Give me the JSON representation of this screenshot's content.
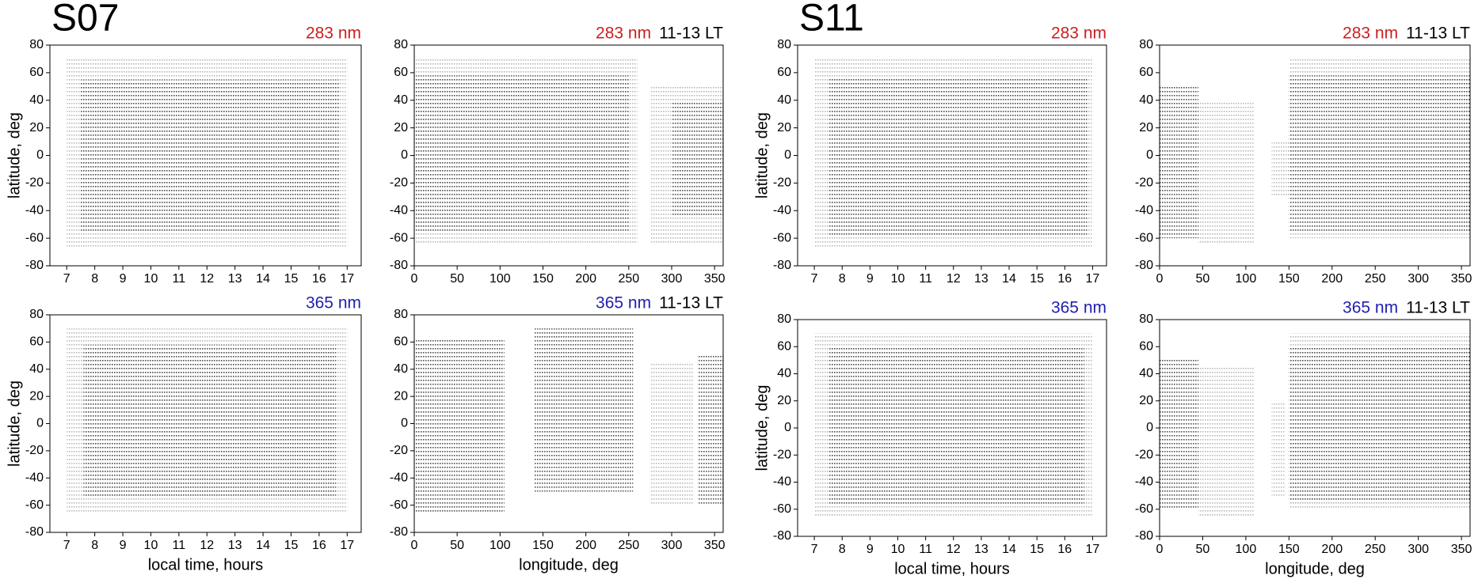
{
  "chart_data": [
    {
      "type": "coverage",
      "group_label": "S07",
      "wavelength": "283 nm",
      "wavelength_color": "#cc1f1f",
      "ylabel": "latitude, deg",
      "xlim": [
        6.4,
        17.5
      ],
      "xticks": [
        7,
        8,
        9,
        10,
        11,
        12,
        13,
        14,
        15,
        16,
        17
      ],
      "ylim": [
        -80,
        80
      ],
      "yticks": [
        -80,
        -60,
        -40,
        -20,
        0,
        20,
        40,
        60,
        80
      ],
      "regions": [
        {
          "x": [
            7,
            17
          ],
          "y": [
            -66,
            70
          ],
          "color": "#bbbbbb"
        },
        {
          "x": [
            7.5,
            16.7
          ],
          "y": [
            -55,
            55
          ],
          "color": "#555555"
        }
      ]
    },
    {
      "type": "coverage",
      "wavelength": "283 nm",
      "wavelength_color": "#cc1f1f",
      "title": "11-13 LT",
      "xlim": [
        0,
        360
      ],
      "xticks": [
        0,
        50,
        100,
        150,
        200,
        250,
        300,
        350
      ],
      "ylim": [
        -80,
        80
      ],
      "yticks": [
        -80,
        -60,
        -40,
        -20,
        0,
        20,
        40,
        60,
        80
      ],
      "regions": [
        {
          "x": [
            0,
            260
          ],
          "y": [
            -65,
            70
          ],
          "color": "#bbbbbb"
        },
        {
          "x": [
            0,
            250
          ],
          "y": [
            -55,
            58
          ],
          "color": "#555555"
        },
        {
          "x": [
            275,
            360
          ],
          "y": [
            -65,
            50
          ],
          "color": "#bbbbbb"
        },
        {
          "x": [
            300,
            360
          ],
          "y": [
            -45,
            40
          ],
          "color": "#555555"
        }
      ]
    },
    {
      "type": "coverage",
      "wavelength": "365 nm",
      "wavelength_color": "#1f1fb0",
      "ylabel": "latitude, deg",
      "xlabel": "local time, hours",
      "xlim": [
        6.4,
        17.5
      ],
      "xticks": [
        7,
        8,
        9,
        10,
        11,
        12,
        13,
        14,
        15,
        16,
        17
      ],
      "ylim": [
        -80,
        80
      ],
      "yticks": [
        -80,
        -60,
        -40,
        -20,
        0,
        20,
        40,
        60,
        80
      ],
      "regions": [
        {
          "x": [
            7,
            17
          ],
          "y": [
            -66,
            70
          ],
          "color": "#bbbbbb"
        },
        {
          "x": [
            7.6,
            16.6
          ],
          "y": [
            -55,
            58
          ],
          "color": "#555555"
        }
      ]
    },
    {
      "type": "coverage",
      "wavelength": "365 nm",
      "wavelength_color": "#1f1fb0",
      "title": "11-13 LT",
      "xlabel": "longitude, deg",
      "xlim": [
        0,
        360
      ],
      "xticks": [
        0,
        50,
        100,
        150,
        200,
        250,
        300,
        350
      ],
      "ylim": [
        -80,
        80
      ],
      "yticks": [
        -80,
        -60,
        -40,
        -20,
        0,
        20,
        40,
        60,
        80
      ],
      "regions": [
        {
          "x": [
            0,
            105
          ],
          "y": [
            -65,
            62
          ],
          "color": "#555555"
        },
        {
          "x": [
            140,
            255
          ],
          "y": [
            -50,
            70
          ],
          "color": "#555555"
        },
        {
          "x": [
            275,
            325
          ],
          "y": [
            -60,
            45
          ],
          "color": "#bbbbbb"
        },
        {
          "x": [
            330,
            360
          ],
          "y": [
            -60,
            50
          ],
          "color": "#555555"
        }
      ]
    },
    {
      "type": "coverage",
      "group_label": "S11",
      "wavelength": "283 nm",
      "wavelength_color": "#cc1f1f",
      "ylabel": "latitude, deg",
      "xlim": [
        6.4,
        17.5
      ],
      "xticks": [
        7,
        8,
        9,
        10,
        11,
        12,
        13,
        14,
        15,
        16,
        17
      ],
      "ylim": [
        -80,
        80
      ],
      "yticks": [
        -80,
        -60,
        -40,
        -20,
        0,
        20,
        40,
        60,
        80
      ],
      "regions": [
        {
          "x": [
            7,
            17
          ],
          "y": [
            -66,
            70
          ],
          "color": "#bbbbbb"
        },
        {
          "x": [
            7.5,
            16.8
          ],
          "y": [
            -58,
            57
          ],
          "color": "#555555"
        }
      ]
    },
    {
      "type": "coverage",
      "wavelength": "283 nm",
      "wavelength_color": "#cc1f1f",
      "title": "11-13 LT",
      "xlim": [
        0,
        360
      ],
      "xticks": [
        0,
        50,
        100,
        150,
        200,
        250,
        300,
        350
      ],
      "ylim": [
        -80,
        80
      ],
      "yticks": [
        -80,
        -60,
        -40,
        -20,
        0,
        20,
        40,
        60,
        80
      ],
      "regions": [
        {
          "x": [
            0,
            45
          ],
          "y": [
            -60,
            50
          ],
          "color": "#555555"
        },
        {
          "x": [
            45,
            110
          ],
          "y": [
            -65,
            40
          ],
          "color": "#bbbbbb"
        },
        {
          "x": [
            130,
            150
          ],
          "y": [
            -30,
            10
          ],
          "color": "#bbbbbb"
        },
        {
          "x": [
            150,
            360
          ],
          "y": [
            -60,
            70
          ],
          "color": "#bbbbbb"
        },
        {
          "x": [
            150,
            360
          ],
          "y": [
            -55,
            58
          ],
          "color": "#555555"
        }
      ]
    },
    {
      "type": "coverage",
      "wavelength": "365 nm",
      "wavelength_color": "#1f1fb0",
      "ylabel": "latitude, deg",
      "xlabel": "local time, hours",
      "xlim": [
        6.4,
        17.5
      ],
      "xticks": [
        7,
        8,
        9,
        10,
        11,
        12,
        13,
        14,
        15,
        16,
        17
      ],
      "ylim": [
        -80,
        80
      ],
      "yticks": [
        -80,
        -60,
        -40,
        -20,
        0,
        20,
        40,
        60,
        80
      ],
      "regions": [
        {
          "x": [
            7,
            17
          ],
          "y": [
            -66,
            70
          ],
          "color": "#bbbbbb"
        },
        {
          "x": [
            7.5,
            16.7
          ],
          "y": [
            -56,
            60
          ],
          "color": "#555555"
        }
      ]
    },
    {
      "type": "coverage",
      "wavelength": "365 nm",
      "wavelength_color": "#1f1fb0",
      "title": "11-13 LT",
      "xlabel": "longitude, deg",
      "xlim": [
        0,
        360
      ],
      "xticks": [
        0,
        50,
        100,
        150,
        200,
        250,
        300,
        350
      ],
      "ylim": [
        -80,
        80
      ],
      "yticks": [
        -80,
        -60,
        -40,
        -20,
        0,
        20,
        40,
        60,
        80
      ],
      "regions": [
        {
          "x": [
            0,
            45
          ],
          "y": [
            -60,
            52
          ],
          "color": "#555555"
        },
        {
          "x": [
            45,
            110
          ],
          "y": [
            -65,
            45
          ],
          "color": "#bbbbbb"
        },
        {
          "x": [
            130,
            145
          ],
          "y": [
            -50,
            20
          ],
          "color": "#bbbbbb"
        },
        {
          "x": [
            150,
            360
          ],
          "y": [
            -60,
            70
          ],
          "color": "#bbbbbb"
        },
        {
          "x": [
            150,
            360
          ],
          "y": [
            -55,
            60
          ],
          "color": "#555555"
        }
      ]
    }
  ]
}
